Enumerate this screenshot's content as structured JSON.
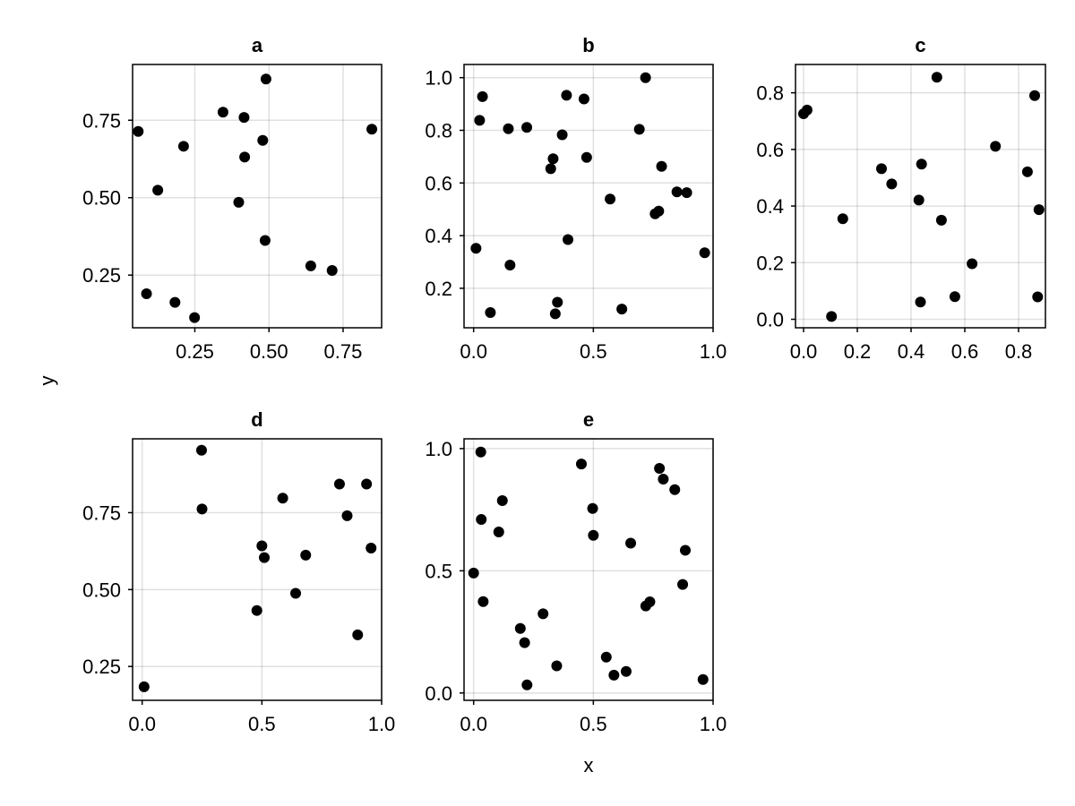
{
  "labels": {
    "xlabel": "x",
    "ylabel": "y"
  },
  "colors": {
    "marker": "#000000",
    "grid": "#e6e6e6",
    "frame": "#000000"
  },
  "chart_data": [
    {
      "type": "scatter",
      "title": "a",
      "xlim": [
        0.04,
        0.88
      ],
      "ylim": [
        0.08,
        0.93
      ],
      "xticks": [
        0.25,
        0.5,
        0.75
      ],
      "xticklabels": [
        "0.25",
        "0.50",
        "0.75"
      ],
      "yticks": [
        0.25,
        0.5,
        0.75
      ],
      "yticklabels": [
        "0.25",
        "0.50",
        "0.75"
      ],
      "grid": true,
      "points": [
        {
          "x": 0.059,
          "y": 0.714
        },
        {
          "x": 0.087,
          "y": 0.19
        },
        {
          "x": 0.125,
          "y": 0.524
        },
        {
          "x": 0.183,
          "y": 0.162
        },
        {
          "x": 0.212,
          "y": 0.666
        },
        {
          "x": 0.249,
          "y": 0.113
        },
        {
          "x": 0.345,
          "y": 0.776
        },
        {
          "x": 0.398,
          "y": 0.485
        },
        {
          "x": 0.416,
          "y": 0.759
        },
        {
          "x": 0.418,
          "y": 0.631
        },
        {
          "x": 0.479,
          "y": 0.685
        },
        {
          "x": 0.487,
          "y": 0.362
        },
        {
          "x": 0.49,
          "y": 0.883
        },
        {
          "x": 0.641,
          "y": 0.28
        },
        {
          "x": 0.713,
          "y": 0.265
        },
        {
          "x": 0.847,
          "y": 0.721
        }
      ]
    },
    {
      "type": "scatter",
      "title": "b",
      "xlim": [
        -0.04,
        1.0
      ],
      "ylim": [
        0.05,
        1.05
      ],
      "xticks": [
        0.0,
        0.5,
        1.0
      ],
      "xticklabels": [
        "0.0",
        "0.5",
        "1.0"
      ],
      "yticks": [
        0.2,
        0.4,
        0.6,
        0.8,
        1.0
      ],
      "yticklabels": [
        "0.2",
        "0.4",
        "0.6",
        "0.8",
        "1.0"
      ],
      "grid": true,
      "points": [
        {
          "x": 0.01,
          "y": 0.352
        },
        {
          "x": 0.025,
          "y": 0.838
        },
        {
          "x": 0.037,
          "y": 0.928
        },
        {
          "x": 0.07,
          "y": 0.108
        },
        {
          "x": 0.145,
          "y": 0.806
        },
        {
          "x": 0.152,
          "y": 0.288
        },
        {
          "x": 0.222,
          "y": 0.811
        },
        {
          "x": 0.322,
          "y": 0.654
        },
        {
          "x": 0.332,
          "y": 0.692
        },
        {
          "x": 0.341,
          "y": 0.103
        },
        {
          "x": 0.35,
          "y": 0.147
        },
        {
          "x": 0.37,
          "y": 0.783
        },
        {
          "x": 0.388,
          "y": 0.933
        },
        {
          "x": 0.394,
          "y": 0.385
        },
        {
          "x": 0.461,
          "y": 0.919
        },
        {
          "x": 0.472,
          "y": 0.697
        },
        {
          "x": 0.57,
          "y": 0.539
        },
        {
          "x": 0.619,
          "y": 0.121
        },
        {
          "x": 0.692,
          "y": 0.804
        },
        {
          "x": 0.718,
          "y": 1.0
        },
        {
          "x": 0.758,
          "y": 0.483
        },
        {
          "x": 0.773,
          "y": 0.493
        },
        {
          "x": 0.785,
          "y": 0.663
        },
        {
          "x": 0.849,
          "y": 0.566
        },
        {
          "x": 0.89,
          "y": 0.563
        },
        {
          "x": 0.965,
          "y": 0.335
        }
      ]
    },
    {
      "type": "scatter",
      "title": "c",
      "xlim": [
        -0.03,
        0.9
      ],
      "ylim": [
        -0.03,
        0.9
      ],
      "xticks": [
        0.0,
        0.2,
        0.4,
        0.6,
        0.8
      ],
      "xticklabels": [
        "0.0",
        "0.2",
        "0.4",
        "0.6",
        "0.8"
      ],
      "yticks": [
        0.0,
        0.2,
        0.4,
        0.6,
        0.8
      ],
      "yticklabels": [
        "0.0",
        "0.2",
        "0.4",
        "0.6",
        "0.8"
      ],
      "grid": true,
      "points": [
        {
          "x": 0.0,
          "y": 0.726
        },
        {
          "x": 0.013,
          "y": 0.739
        },
        {
          "x": 0.104,
          "y": 0.01
        },
        {
          "x": 0.146,
          "y": 0.355
        },
        {
          "x": 0.29,
          "y": 0.532
        },
        {
          "x": 0.328,
          "y": 0.478
        },
        {
          "x": 0.429,
          "y": 0.421
        },
        {
          "x": 0.435,
          "y": 0.061
        },
        {
          "x": 0.439,
          "y": 0.548
        },
        {
          "x": 0.496,
          "y": 0.855
        },
        {
          "x": 0.513,
          "y": 0.35
        },
        {
          "x": 0.563,
          "y": 0.08
        },
        {
          "x": 0.627,
          "y": 0.196
        },
        {
          "x": 0.714,
          "y": 0.611
        },
        {
          "x": 0.833,
          "y": 0.521
        },
        {
          "x": 0.86,
          "y": 0.79
        },
        {
          "x": 0.871,
          "y": 0.079
        },
        {
          "x": 0.876,
          "y": 0.387
        }
      ]
    },
    {
      "type": "scatter",
      "title": "d",
      "xlim": [
        -0.04,
        1.0
      ],
      "ylim": [
        0.14,
        0.99
      ],
      "xticks": [
        0.0,
        0.5,
        1.0
      ],
      "xticklabels": [
        "0.0",
        "0.5",
        "1.0"
      ],
      "yticks": [
        0.25,
        0.5,
        0.75
      ],
      "yticklabels": [
        "0.25",
        "0.50",
        "0.75"
      ],
      "grid": true,
      "points": [
        {
          "x": 0.008,
          "y": 0.184
        },
        {
          "x": 0.248,
          "y": 0.953
        },
        {
          "x": 0.25,
          "y": 0.762
        },
        {
          "x": 0.479,
          "y": 0.432
        },
        {
          "x": 0.5,
          "y": 0.642
        },
        {
          "x": 0.51,
          "y": 0.604
        },
        {
          "x": 0.587,
          "y": 0.797
        },
        {
          "x": 0.641,
          "y": 0.488
        },
        {
          "x": 0.683,
          "y": 0.612
        },
        {
          "x": 0.824,
          "y": 0.843
        },
        {
          "x": 0.856,
          "y": 0.74
        },
        {
          "x": 0.9,
          "y": 0.353
        },
        {
          "x": 0.937,
          "y": 0.843
        },
        {
          "x": 0.956,
          "y": 0.635
        }
      ]
    },
    {
      "type": "scatter",
      "title": "e",
      "xlim": [
        -0.04,
        1.0
      ],
      "ylim": [
        -0.03,
        1.04
      ],
      "xticks": [
        0.0,
        0.5,
        1.0
      ],
      "xticklabels": [
        "0.0",
        "0.5",
        "1.0"
      ],
      "yticks": [
        0.0,
        0.5,
        1.0
      ],
      "yticklabels": [
        "0.0",
        "0.5",
        "1.0"
      ],
      "grid": true,
      "points": [
        {
          "x": 0.0,
          "y": 0.491
        },
        {
          "x": 0.03,
          "y": 0.986
        },
        {
          "x": 0.032,
          "y": 0.71
        },
        {
          "x": 0.04,
          "y": 0.374
        },
        {
          "x": 0.105,
          "y": 0.659
        },
        {
          "x": 0.12,
          "y": 0.787
        },
        {
          "x": 0.195,
          "y": 0.264
        },
        {
          "x": 0.213,
          "y": 0.206
        },
        {
          "x": 0.223,
          "y": 0.033
        },
        {
          "x": 0.29,
          "y": 0.324
        },
        {
          "x": 0.347,
          "y": 0.111
        },
        {
          "x": 0.45,
          "y": 0.937
        },
        {
          "x": 0.497,
          "y": 0.755
        },
        {
          "x": 0.5,
          "y": 0.645
        },
        {
          "x": 0.554,
          "y": 0.147
        },
        {
          "x": 0.586,
          "y": 0.073
        },
        {
          "x": 0.637,
          "y": 0.088
        },
        {
          "x": 0.656,
          "y": 0.613
        },
        {
          "x": 0.719,
          "y": 0.356
        },
        {
          "x": 0.736,
          "y": 0.373
        },
        {
          "x": 0.776,
          "y": 0.919
        },
        {
          "x": 0.792,
          "y": 0.875
        },
        {
          "x": 0.84,
          "y": 0.832
        },
        {
          "x": 0.873,
          "y": 0.444
        },
        {
          "x": 0.884,
          "y": 0.584
        },
        {
          "x": 0.958,
          "y": 0.055
        }
      ]
    }
  ]
}
